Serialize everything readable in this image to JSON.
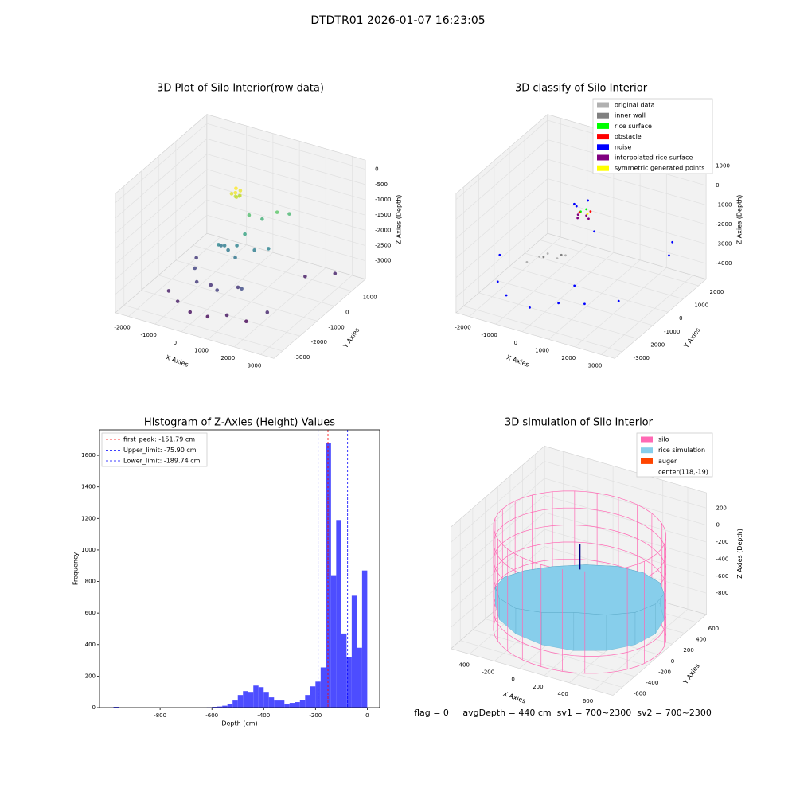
{
  "title": "DTDTR01 2026-01-07 16:23:05",
  "footer": "flag = 0     avgDepth = 440 cm  sv1 = 700~2300  sv2 = 700~2300",
  "chart_data": [
    {
      "type": "scatter3d",
      "title": "3D Plot of Silo Interior(row data)",
      "xlabel": "X Axies",
      "ylabel": "Y Axies",
      "zlabel": "Z Axies (Depth)",
      "xlim": [
        -2500,
        3500
      ],
      "ylim": [
        -3500,
        1800
      ],
      "zlim": [
        -3600,
        300
      ],
      "xticks": [
        -2000,
        -1000,
        0,
        1000,
        2000,
        3000
      ],
      "yticks": [
        -3000,
        -2000,
        -1000,
        0,
        1000
      ],
      "zticks": [
        -3000,
        -2500,
        -2000,
        -1500,
        -1000,
        -500,
        0
      ],
      "colormap": "viridis",
      "points": {
        "x": [
          300,
          400,
          200,
          350,
          250,
          450,
          300,
          380,
          600,
          900,
          700,
          1600,
          1400,
          -100,
          0,
          200,
          400,
          600,
          1000,
          1400,
          -200,
          -800,
          -400,
          0,
          500,
          900,
          1300,
          -1200,
          -600,
          0,
          600,
          1200,
          1800,
          2400,
          -1200,
          2200,
          3000
        ],
        "y": [
          -800,
          -700,
          -900,
          -850,
          -750,
          -800,
          -600,
          -950,
          -500,
          -200,
          -900,
          300,
          -100,
          -1200,
          -1000,
          -1100,
          -900,
          -1300,
          -800,
          -600,
          -900,
          -1500,
          -2000,
          -1800,
          -2200,
          -1600,
          -2000,
          -800,
          -2800,
          -3000,
          -2900,
          -2700,
          -2500,
          -2200,
          -2400,
          300,
          800
        ],
        "z": [
          -150,
          -250,
          -300,
          -400,
          -450,
          -350,
          -500,
          -200,
          -1100,
          -1300,
          -1500,
          -1200,
          -1000,
          -1900,
          -2000,
          -2050,
          -1950,
          -2100,
          -2000,
          -1950,
          -2100,
          -2700,
          -2800,
          -2900,
          -2750,
          -2850,
          -2600,
          -2800,
          -3100,
          -3200,
          -3250,
          -3150,
          -3300,
          -3000,
          -3100,
          -3100,
          -3050
        ]
      }
    },
    {
      "type": "scatter3d",
      "title": "3D classify of Silo Interior",
      "xlabel": "X Axies",
      "ylabel": "Y Axies",
      "zlabel": "Z Axies (Depth)",
      "xlim": [
        -2500,
        3500
      ],
      "ylim": [
        -3500,
        2500
      ],
      "zlim": [
        -4800,
        1300
      ],
      "xticks": [
        -2000,
        -1000,
        0,
        1000,
        2000,
        3000
      ],
      "yticks": [
        -3000,
        -2000,
        -1000,
        0,
        1000,
        2000
      ],
      "zticks": [
        -4000,
        -3000,
        -2000,
        -1000,
        0,
        1000
      ],
      "legend": "upper right",
      "series": [
        {
          "name": "original data",
          "color": "#b0b0b0",
          "x": [
            -500,
            -300,
            0,
            200,
            -800
          ],
          "y": [
            -1500,
            -1300,
            -1200,
            -1000,
            -1800
          ],
          "z": [
            -2500,
            -2400,
            -2600,
            -2500,
            -2700
          ]
        },
        {
          "name": "inner wall",
          "color": "#808080",
          "x": [
            -400,
            100
          ],
          "y": [
            -1400,
            -1100
          ],
          "z": [
            -2550,
            -2450
          ]
        },
        {
          "name": "rice surface",
          "color": "#00ff00",
          "x": [
            600,
            700
          ],
          "y": [
            -700,
            -500
          ],
          "z": [
            -300,
            -280
          ]
        },
        {
          "name": "obstacle",
          "color": "#ff0000",
          "x": [
            500,
            800
          ],
          "y": [
            -600,
            -400
          ],
          "z": [
            -450,
            -420
          ]
        },
        {
          "name": "noise",
          "color": "#0000ff",
          "x": [
            -1500,
            -1000,
            0,
            800,
            1500,
            2500,
            -2000,
            1000,
            2800,
            2500,
            300,
            500,
            700,
            1000
          ],
          "y": [
            -2500,
            -2800,
            -3000,
            -2500,
            -2000,
            -1500,
            -1500,
            -1800,
            1500,
            1800,
            -600,
            -800,
            -400,
            -500
          ],
          "z": [
            -3500,
            -3800,
            -3900,
            -3700,
            -3800,
            -3600,
            -3000,
            -3200,
            -2500,
            -3500,
            -100,
            0,
            100,
            -1300
          ]
        },
        {
          "name": "interpolated rice surface",
          "color": "#800080",
          "x": [
            500,
            700,
            900,
            600
          ],
          "y": [
            -700,
            -500,
            -700,
            -900
          ],
          "z": [
            -500,
            -600,
            -550,
            -500
          ]
        },
        {
          "name": "symmetric generated points",
          "color": "#ffff00",
          "x": [
            800
          ],
          "y": [
            -600
          ],
          "z": [
            -400
          ]
        }
      ]
    },
    {
      "type": "histogram",
      "title": "Histogram of Z-Axies (Height) Values",
      "xlabel": "Depth (cm)",
      "ylabel": "Frequency",
      "color": "#4d4dff",
      "xlim": [
        -1034,
        48
      ],
      "ylim": [
        0,
        1762
      ],
      "xticks": [
        -800,
        -600,
        -400,
        -200,
        0
      ],
      "yticks": [
        0,
        200,
        400,
        600,
        800,
        1000,
        1200,
        1400,
        1600
      ],
      "legend": "upper left",
      "bins": [
        -980,
        -960,
        -940,
        -920,
        -900,
        -880,
        -860,
        -840,
        -820,
        -800,
        -780,
        -760,
        -740,
        -720,
        -700,
        -680,
        -660,
        -640,
        -620,
        -600,
        -580,
        -560,
        -540,
        -520,
        -500,
        -480,
        -460,
        -440,
        -420,
        -400,
        -380,
        -360,
        -340,
        -320,
        -300,
        -280,
        -260,
        -240,
        -220,
        -200,
        -180,
        -160,
        -140,
        -120,
        -100,
        -80,
        -60,
        -40,
        -20,
        0
      ],
      "counts": [
        5,
        0,
        0,
        0,
        0,
        0,
        0,
        0,
        0,
        0,
        0,
        0,
        0,
        0,
        0,
        0,
        0,
        0,
        2,
        5,
        7,
        12,
        25,
        45,
        80,
        105,
        100,
        140,
        130,
        100,
        65,
        45,
        45,
        25,
        30,
        35,
        50,
        80,
        135,
        165,
        255,
        1680,
        840,
        1190,
        470,
        320,
        710,
        380,
        870
      ],
      "vlines": [
        {
          "label": "first_peak: -151.79 cm",
          "value": -151.79,
          "color": "#ff0000"
        },
        {
          "label": "Upper_limit: -75.90 cm",
          "value": -75.9,
          "color": "#0000ff"
        },
        {
          "label": "Lower_limit: -189.74 cm",
          "value": -189.74,
          "color": "#0000ff"
        }
      ]
    },
    {
      "type": "surface3d",
      "title": "3D simulation of Silo Interior",
      "xlabel": "X Axies",
      "ylabel": "Y Axies",
      "zlabel": "Z Axies (Depth)",
      "xlim": [
        -550,
        750
      ],
      "ylim": [
        -750,
        750
      ],
      "zlim": [
        -1050,
        380
      ],
      "xticks": [
        -400,
        -200,
        0,
        200,
        400,
        600
      ],
      "yticks": [
        -600,
        -400,
        -200,
        0,
        200,
        400,
        600
      ],
      "zticks": [
        -800,
        -600,
        -400,
        -200,
        0,
        200
      ],
      "legend": "upper right",
      "series": [
        {
          "name": "silo",
          "color": "#ff69b4"
        },
        {
          "name": "rice simulation",
          "color": "#87ceeb"
        },
        {
          "name": "auger",
          "color": "#ff4500"
        }
      ],
      "center": {
        "label": "center(118,-19)",
        "value": [
          118,
          -19
        ]
      },
      "silo_radius": 620,
      "silo_z": [
        -1050,
        150
      ],
      "rice_edge_z": [
        -450,
        -500,
        -550,
        -600,
        -650,
        -700,
        -720,
        -700,
        -650,
        -600,
        -550,
        -500,
        -420,
        -350,
        -380,
        -420
      ],
      "rice_bottom_z": -800,
      "auger_z": [
        -300,
        0
      ]
    }
  ]
}
